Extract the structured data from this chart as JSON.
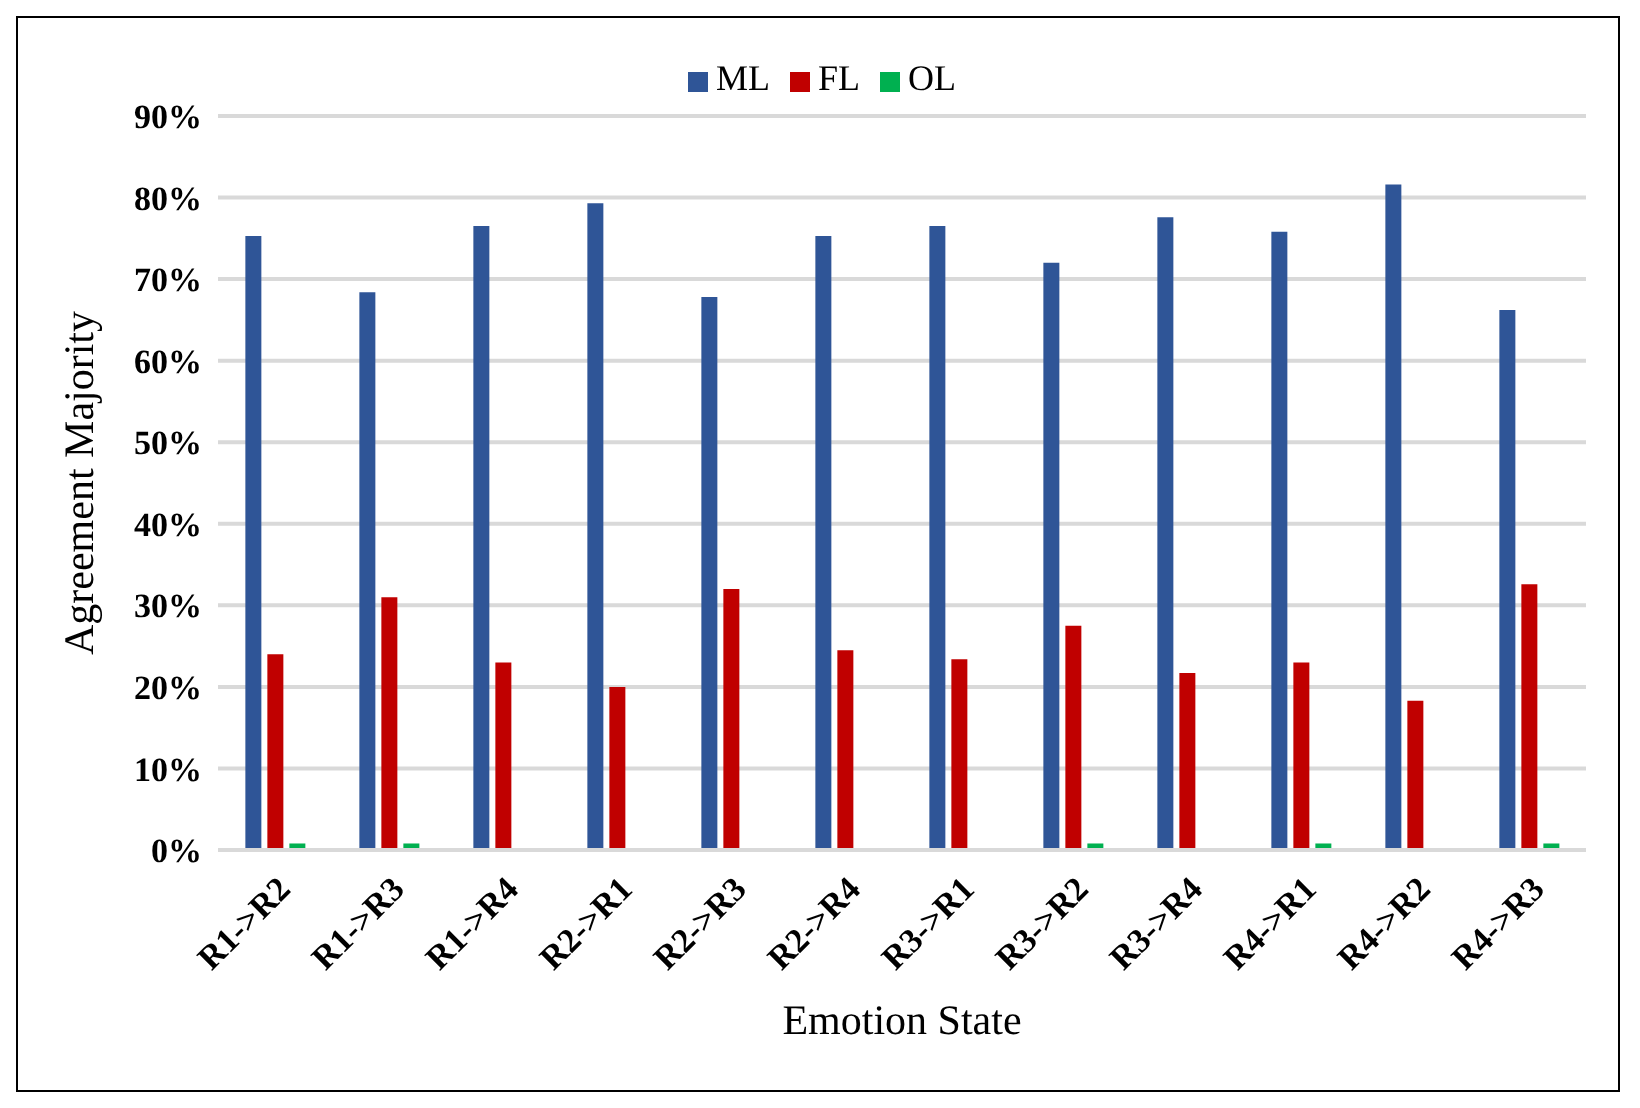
{
  "chart_data": {
    "type": "bar",
    "xlabel": "Emotion State",
    "ylabel": "Agreement Majority",
    "categories": [
      "R1->R2",
      "R1->R3",
      "R1->R4",
      "R2->R1",
      "R2->R3",
      "R2->R4",
      "R3->R1",
      "R3->R2",
      "R3->R4",
      "R4->R1",
      "R4->R2",
      "R4->R3"
    ],
    "series": [
      {
        "name": "ML",
        "color": "#2f5597",
        "values": [
          75.3,
          68.4,
          76.5,
          79.3,
          67.8,
          75.3,
          76.5,
          72,
          77.6,
          75.8,
          81.6,
          66.2
        ]
      },
      {
        "name": "FL",
        "color": "#c00000",
        "values": [
          24,
          31,
          23,
          20,
          32,
          24.5,
          23.4,
          27.5,
          21.7,
          23,
          18.3,
          32.6
        ]
      },
      {
        "name": "OL",
        "color": "#00b050",
        "values": [
          0.8,
          0.8,
          0,
          0,
          0,
          0,
          0,
          0.8,
          0,
          0.8,
          0,
          0.8
        ]
      }
    ],
    "ylim": [
      0,
      90
    ],
    "yticks": [
      {
        "value": 0,
        "label": "0%"
      },
      {
        "value": 10,
        "label": "10%"
      },
      {
        "value": 20,
        "label": "20%"
      },
      {
        "value": 30,
        "label": "30%"
      },
      {
        "value": 40,
        "label": "40%"
      },
      {
        "value": 50,
        "label": "50%"
      },
      {
        "value": 60,
        "label": "60%"
      },
      {
        "value": 70,
        "label": "70%"
      },
      {
        "value": 80,
        "label": "80%"
      },
      {
        "value": 90,
        "label": "90%"
      }
    ],
    "grid": "y",
    "legend": "top"
  }
}
